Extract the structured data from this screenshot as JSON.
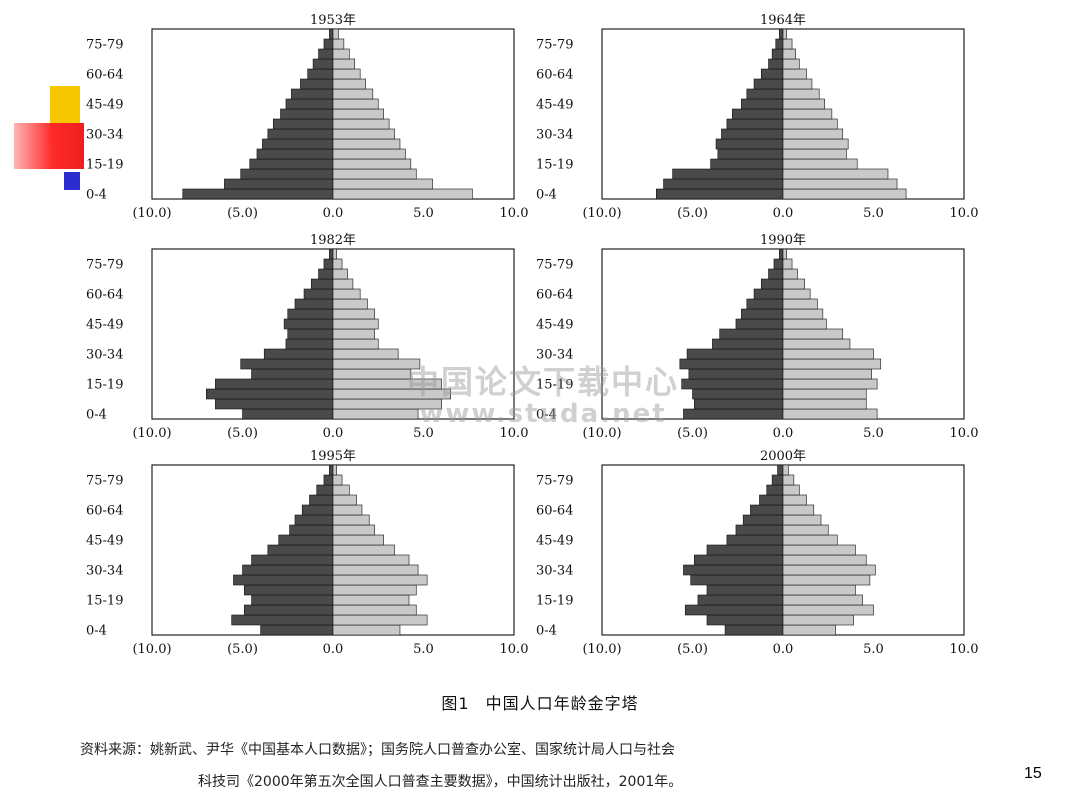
{
  "colors": {
    "male": "#4a4a4a",
    "female": "#c9c9c9",
    "frame": "#222222",
    "deco_yellow": "#f6c600",
    "deco_red": "#ee1e1e",
    "deco_blue": "#2b2bd0"
  },
  "chart_data": [
    {
      "type": "population-pyramid",
      "title": "1953年",
      "age_labels": [
        "75-79",
        "60-64",
        "45-49",
        "30-34",
        "15-19",
        "0-4"
      ],
      "x_tick_labels": [
        "(10.0)",
        "(5.0)",
        "0.0",
        "5.0",
        "10.0"
      ],
      "xlim": [
        -10,
        10
      ],
      "age_groups": [
        "0-4",
        "5-9",
        "10-14",
        "15-19",
        "20-24",
        "25-29",
        "30-34",
        "35-39",
        "40-44",
        "45-49",
        "50-54",
        "55-59",
        "60-64",
        "65-69",
        "70-74",
        "75-79",
        "80+"
      ],
      "series": [
        {
          "name": "",
          "values": [
            -8.3,
            -6.0,
            -5.1,
            -4.6,
            -4.2,
            -3.9,
            -3.6,
            -3.3,
            -2.9,
            -2.6,
            -2.3,
            -1.8,
            -1.4,
            -1.1,
            -0.8,
            -0.5,
            -0.2
          ]
        },
        {
          "name": "",
          "values": [
            7.7,
            5.5,
            4.6,
            4.3,
            4.0,
            3.7,
            3.4,
            3.1,
            2.8,
            2.5,
            2.2,
            1.8,
            1.5,
            1.2,
            0.9,
            0.6,
            0.3
          ]
        }
      ]
    },
    {
      "type": "population-pyramid",
      "title": "1964年",
      "age_labels": [
        "75-79",
        "60-64",
        "45-49",
        "30-34",
        "15-19",
        "0-4"
      ],
      "x_tick_labels": [
        "(10.0)",
        "(5.0)",
        "0.0",
        "5.0",
        "10.0"
      ],
      "xlim": [
        -10,
        10
      ],
      "age_groups": [
        "0-4",
        "5-9",
        "10-14",
        "15-19",
        "20-24",
        "25-29",
        "30-34",
        "35-39",
        "40-44",
        "45-49",
        "50-54",
        "55-59",
        "60-64",
        "65-69",
        "70-74",
        "75-79",
        "80+"
      ],
      "series": [
        {
          "name": "",
          "values": [
            -7.0,
            -6.6,
            -6.1,
            -4.0,
            -3.6,
            -3.7,
            -3.4,
            -3.1,
            -2.8,
            -2.3,
            -2.0,
            -1.6,
            -1.2,
            -0.8,
            -0.6,
            -0.4,
            -0.2
          ]
        },
        {
          "name": "",
          "values": [
            6.8,
            6.3,
            5.8,
            4.1,
            3.5,
            3.6,
            3.3,
            3.0,
            2.7,
            2.3,
            2.0,
            1.6,
            1.3,
            0.9,
            0.7,
            0.5,
            0.2
          ]
        }
      ]
    },
    {
      "type": "population-pyramid",
      "title": "1982年",
      "age_labels": [
        "75-79",
        "60-64",
        "45-49",
        "30-34",
        "15-19",
        "0-4"
      ],
      "x_tick_labels": [
        "(10.0)",
        "(5.0)",
        "0.0",
        "5.0",
        "10.0"
      ],
      "xlim": [
        -10,
        10
      ],
      "age_groups": [
        "0-4",
        "5-9",
        "10-14",
        "15-19",
        "20-24",
        "25-29",
        "30-34",
        "35-39",
        "40-44",
        "45-49",
        "50-54",
        "55-59",
        "60-64",
        "65-69",
        "70-74",
        "75-79",
        "80+"
      ],
      "series": [
        {
          "name": "",
          "values": [
            -5.0,
            -6.5,
            -7.0,
            -6.5,
            -4.5,
            -5.1,
            -3.8,
            -2.6,
            -2.5,
            -2.7,
            -2.5,
            -2.1,
            -1.6,
            -1.2,
            -0.8,
            -0.5,
            -0.2
          ]
        },
        {
          "name": "",
          "values": [
            4.7,
            6.0,
            6.5,
            6.0,
            4.3,
            4.8,
            3.6,
            2.5,
            2.3,
            2.5,
            2.3,
            1.9,
            1.5,
            1.1,
            0.8,
            0.5,
            0.2
          ]
        }
      ]
    },
    {
      "type": "population-pyramid",
      "title": "1990年",
      "age_labels": [
        "75-79",
        "60-64",
        "45-49",
        "30-34",
        "15-19",
        "0-4"
      ],
      "x_tick_labels": [
        "(10.0)",
        "(5.0)",
        "0.0",
        "5.0",
        "10.0"
      ],
      "xlim": [
        -10,
        10
      ],
      "age_groups": [
        "0-4",
        "5-9",
        "10-14",
        "15-19",
        "20-24",
        "25-29",
        "30-34",
        "35-39",
        "40-44",
        "45-49",
        "50-54",
        "55-59",
        "60-64",
        "65-69",
        "70-74",
        "75-79",
        "80+"
      ],
      "series": [
        {
          "name": "",
          "values": [
            -5.5,
            -4.9,
            -5.0,
            -5.6,
            -5.2,
            -5.7,
            -5.3,
            -3.9,
            -3.5,
            -2.6,
            -2.3,
            -2.0,
            -1.6,
            -1.2,
            -0.8,
            -0.5,
            -0.2
          ]
        },
        {
          "name": "",
          "values": [
            5.2,
            4.6,
            4.6,
            5.2,
            4.9,
            5.4,
            5.0,
            3.7,
            3.3,
            2.4,
            2.2,
            1.9,
            1.5,
            1.2,
            0.8,
            0.5,
            0.2
          ]
        }
      ]
    },
    {
      "type": "population-pyramid",
      "title": "1995年",
      "age_labels": [
        "75-79",
        "60-64",
        "45-49",
        "30-34",
        "15-19",
        "0-4"
      ],
      "x_tick_labels": [
        "(10.0)",
        "(5.0)",
        "0.0",
        "5.0",
        "10.0"
      ],
      "xlim": [
        -10,
        10
      ],
      "age_groups": [
        "0-4",
        "5-9",
        "10-14",
        "15-19",
        "20-24",
        "25-29",
        "30-34",
        "35-39",
        "40-44",
        "45-49",
        "50-54",
        "55-59",
        "60-64",
        "65-69",
        "70-74",
        "75-79",
        "80+"
      ],
      "series": [
        {
          "name": "",
          "values": [
            -4.0,
            -5.6,
            -4.9,
            -4.5,
            -4.9,
            -5.5,
            -5.0,
            -4.5,
            -3.6,
            -3.0,
            -2.4,
            -2.1,
            -1.7,
            -1.3,
            -0.9,
            -0.5,
            -0.2
          ]
        },
        {
          "name": "",
          "values": [
            3.7,
            5.2,
            4.6,
            4.2,
            4.6,
            5.2,
            4.7,
            4.2,
            3.4,
            2.8,
            2.3,
            2.0,
            1.6,
            1.3,
            0.9,
            0.5,
            0.2
          ]
        }
      ]
    },
    {
      "type": "population-pyramid",
      "title": "2000年",
      "age_labels": [
        "75-79",
        "60-64",
        "45-49",
        "30-34",
        "15-19",
        "0-4"
      ],
      "x_tick_labels": [
        "(10.0)",
        "(5.0)",
        "0.0",
        "5.0",
        "10.0"
      ],
      "xlim": [
        -10,
        10
      ],
      "age_groups": [
        "0-4",
        "5-9",
        "10-14",
        "15-19",
        "20-24",
        "25-29",
        "30-34",
        "35-39",
        "40-44",
        "45-49",
        "50-54",
        "55-59",
        "60-64",
        "65-69",
        "70-74",
        "75-79",
        "80+"
      ],
      "series": [
        {
          "name": "",
          "values": [
            -3.2,
            -4.2,
            -5.4,
            -4.7,
            -4.2,
            -5.1,
            -5.5,
            -4.9,
            -4.2,
            -3.1,
            -2.6,
            -2.2,
            -1.8,
            -1.3,
            -0.9,
            -0.6,
            -0.3
          ]
        },
        {
          "name": "",
          "values": [
            2.9,
            3.9,
            5.0,
            4.4,
            4.0,
            4.8,
            5.1,
            4.6,
            4.0,
            3.0,
            2.5,
            2.1,
            1.7,
            1.3,
            0.9,
            0.6,
            0.3
          ]
        }
      ]
    }
  ],
  "caption": {
    "figure_label": "图1",
    "text": "中国人口年龄金字塔"
  },
  "source": {
    "line1": "资料来源：姚新武、尹华《中国基本人口数据》；国务院人口普查办公室、国家统计局人口与社会",
    "line2": "科技司《2000年第五次全国人口普查主要数据》，中国统计出版社，2001年。"
  },
  "watermark": {
    "line1": "中国论文下载中心",
    "line2": "www.studa.net"
  },
  "page_number": "15"
}
